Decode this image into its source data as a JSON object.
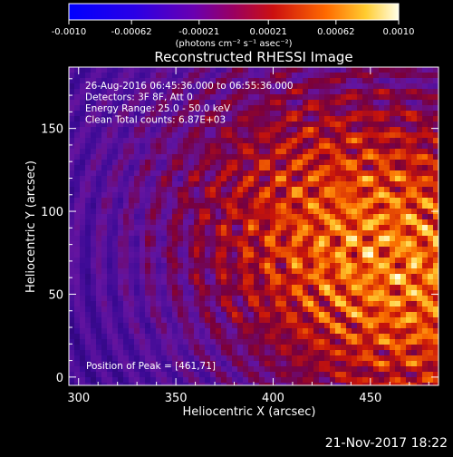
{
  "chart_data": {
    "type": "heatmap",
    "title": "Reconstructed RHESSI Image",
    "xlabel": "Heliocentric X (arcsec)",
    "ylabel": "Heliocentric Y (arcsec)",
    "xlim": [
      295,
      485
    ],
    "ylim": [
      -5,
      187
    ],
    "x_ticks": [
      300,
      350,
      400,
      450
    ],
    "y_ticks": [
      0,
      50,
      100,
      150
    ],
    "colorbar": {
      "range": [
        -0.001,
        0.001
      ],
      "ticks": [
        "-0.0010",
        "-0.00062",
        "-0.00021",
        "0.00021",
        "0.00062",
        "0.0010"
      ],
      "units": "(photons cm⁻² s⁻¹ asec⁻²)"
    },
    "annotations": [
      "26-Aug-2016 06:45:36.000 to 06:55:36.000",
      "Detectors: 3F 8F, Att 0",
      "Energy Range: 25.0 - 50.0 keV",
      "Clean     Total counts: 6.87E+03"
    ],
    "peak_label": "Position of Peak = [461,71]",
    "peak": {
      "x": 461,
      "y": 71
    }
  },
  "footer": {
    "date": "21-Nov-2017 18:22"
  }
}
